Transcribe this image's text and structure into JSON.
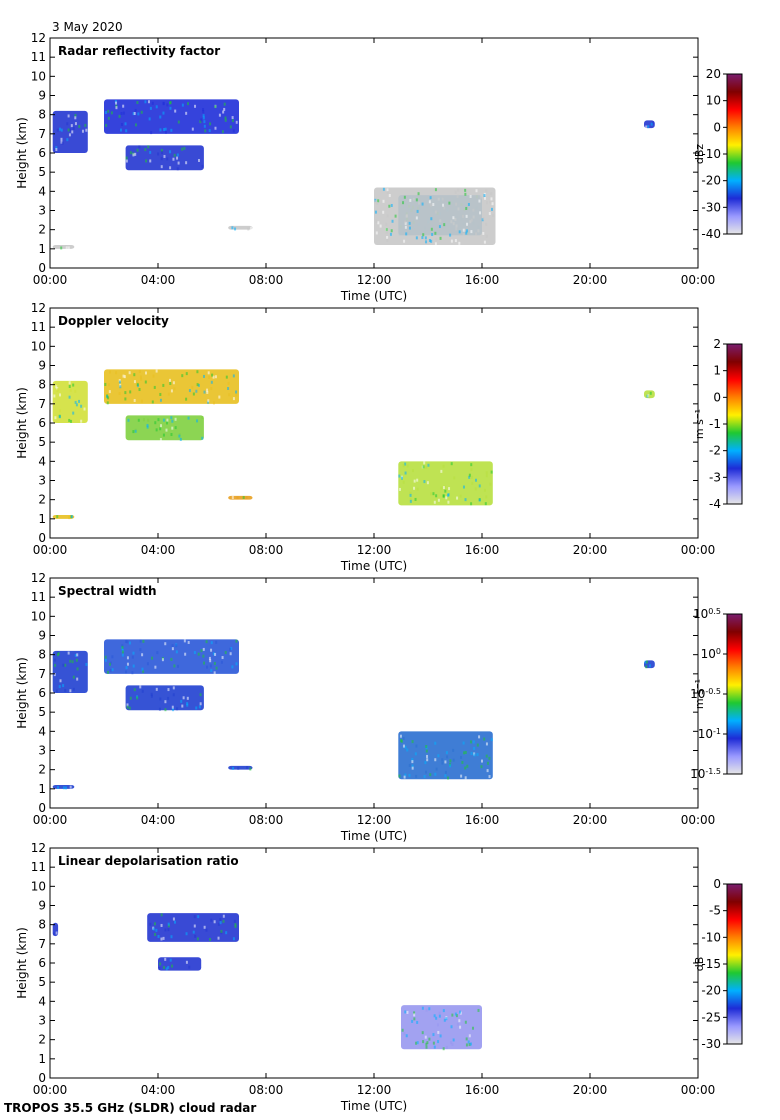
{
  "date_label": "3 May 2020",
  "footer": "TROPOS 35.5 GHz (SLDR) cloud radar",
  "axes": {
    "xlabel": "Time (UTC)",
    "ylabel": "Height (km)",
    "xticks": [
      "00:00",
      "04:00",
      "08:00",
      "12:00",
      "16:00",
      "20:00",
      "00:00"
    ],
    "yticks": [
      "0",
      "1",
      "2",
      "3",
      "4",
      "5",
      "6",
      "7",
      "8",
      "9",
      "10",
      "11",
      "12"
    ]
  },
  "chart_data": [
    {
      "type": "heatmap",
      "title": "Radar reflectivity factor",
      "xlabel": "Time (UTC)",
      "ylabel": "Height (km)",
      "xlim": [
        0,
        24
      ],
      "ylim": [
        0,
        12
      ],
      "colorbar": {
        "label": "dBz",
        "ticks": [
          "20",
          "10",
          "0",
          "-10",
          "-20",
          "-30",
          "-40"
        ],
        "range": [
          -40,
          20
        ],
        "colors": [
          "#e6e6e6",
          "#9999ff",
          "#1e2bd6",
          "#00b0ff",
          "#1fc832",
          "#fff000",
          "#ff8000",
          "#ff0000",
          "#800000",
          "#7a1e6e"
        ]
      },
      "echoes": [
        {
          "t0": 0.1,
          "t1": 1.4,
          "h0": 6.0,
          "h1": 8.2,
          "color": "#2436d0"
        },
        {
          "t0": 2.0,
          "t1": 7.0,
          "h0": 7.0,
          "h1": 8.8,
          "color": "#1f2fd8"
        },
        {
          "t0": 2.8,
          "t1": 5.7,
          "h0": 5.1,
          "h1": 6.4,
          "color": "#2436d0"
        },
        {
          "t0": 12.9,
          "t1": 16.0,
          "h0": 1.7,
          "h1": 3.8,
          "color": "#1e8fd0"
        },
        {
          "t0": 12.0,
          "t1": 16.5,
          "h0": 1.2,
          "h1": 4.2,
          "color": "#c8c8c8"
        },
        {
          "t0": 6.6,
          "t1": 7.5,
          "h0": 2.0,
          "h1": 2.2,
          "color": "#c8c8c8"
        },
        {
          "t0": 0.1,
          "t1": 0.9,
          "h0": 1.0,
          "h1": 1.2,
          "color": "#c8c8c8"
        },
        {
          "t0": 22.0,
          "t1": 22.4,
          "h0": 7.3,
          "h1": 7.7,
          "color": "#2436d0"
        }
      ]
    },
    {
      "type": "heatmap",
      "title": "Doppler velocity",
      "xlabel": "Time (UTC)",
      "ylabel": "Height (km)",
      "xlim": [
        0,
        24
      ],
      "ylim": [
        0,
        12
      ],
      "colorbar": {
        "label": "m s⁻¹",
        "ticks": [
          "2",
          "1",
          "0",
          "-1",
          "-2",
          "-3",
          "-4"
        ],
        "range": [
          -4,
          2
        ],
        "colors": [
          "#e6e6e6",
          "#9999ff",
          "#1e2bd6",
          "#00b0ff",
          "#1fc832",
          "#fff000",
          "#ff8000",
          "#ff0000",
          "#800000",
          "#7a1e6e"
        ]
      },
      "echoes": [
        {
          "t0": 0.1,
          "t1": 1.4,
          "h0": 6.0,
          "h1": 8.2,
          "color": "#d2e03a"
        },
        {
          "t0": 2.0,
          "t1": 7.0,
          "h0": 7.0,
          "h1": 8.8,
          "color": "#e8c020"
        },
        {
          "t0": 2.8,
          "t1": 5.7,
          "h0": 5.1,
          "h1": 6.4,
          "color": "#7fd040"
        },
        {
          "t0": 12.9,
          "t1": 16.4,
          "h0": 1.7,
          "h1": 4.0,
          "color": "#b8e040"
        },
        {
          "t0": 6.6,
          "t1": 7.5,
          "h0": 2.0,
          "h1": 2.2,
          "color": "#e8a020"
        },
        {
          "t0": 0.1,
          "t1": 0.9,
          "h0": 1.0,
          "h1": 1.2,
          "color": "#e8c020"
        },
        {
          "t0": 22.0,
          "t1": 22.4,
          "h0": 7.3,
          "h1": 7.7,
          "color": "#b8e040"
        }
      ]
    },
    {
      "type": "heatmap",
      "title": "Spectral width",
      "xlabel": "Time (UTC)",
      "ylabel": "Height (km)",
      "xlim": [
        0,
        24
      ],
      "ylim": [
        0,
        12
      ],
      "colorbar": {
        "label": "m s⁻¹",
        "ticks": [
          "10^0.5",
          "10^0",
          "10^-0.5",
          "10^-1",
          "10^-1.5"
        ],
        "range": [
          -1.5,
          0.5
        ],
        "colors": [
          "#e6e6e6",
          "#9999ff",
          "#1e2bd6",
          "#00b0ff",
          "#1fc832",
          "#fff000",
          "#ff8000",
          "#ff0000",
          "#800000",
          "#7a1e6e"
        ]
      },
      "echoes": [
        {
          "t0": 0.1,
          "t1": 1.4,
          "h0": 6.0,
          "h1": 8.2,
          "color": "#2040d0"
        },
        {
          "t0": 2.0,
          "t1": 7.0,
          "h0": 7.0,
          "h1": 8.8,
          "color": "#2a58d8"
        },
        {
          "t0": 2.8,
          "t1": 5.7,
          "h0": 5.1,
          "h1": 6.4,
          "color": "#2040d0"
        },
        {
          "t0": 12.9,
          "t1": 16.4,
          "h0": 1.5,
          "h1": 4.0,
          "color": "#2a6fd0"
        },
        {
          "t0": 6.6,
          "t1": 7.5,
          "h0": 2.0,
          "h1": 2.2,
          "color": "#2040d0"
        },
        {
          "t0": 0.1,
          "t1": 0.9,
          "h0": 1.0,
          "h1": 1.2,
          "color": "#2040d0"
        },
        {
          "t0": 22.0,
          "t1": 22.4,
          "h0": 7.3,
          "h1": 7.7,
          "color": "#2040d0"
        }
      ]
    },
    {
      "type": "heatmap",
      "title": "Linear depolarisation ratio",
      "xlabel": "Time (UTC)",
      "ylabel": "Height (km)",
      "xlim": [
        0,
        24
      ],
      "ylim": [
        0,
        12
      ],
      "colorbar": {
        "label": "dB",
        "ticks": [
          "0",
          "-5",
          "-10",
          "-15",
          "-20",
          "-25",
          "-30"
        ],
        "range": [
          -30,
          0
        ],
        "colors": [
          "#e6e6e6",
          "#9999ff",
          "#1e2bd6",
          "#00b0ff",
          "#1fc832",
          "#fff000",
          "#ff8000",
          "#ff0000",
          "#800000",
          "#7a1e6e"
        ]
      },
      "echoes": [
        {
          "t0": 3.6,
          "t1": 7.0,
          "h0": 7.1,
          "h1": 8.6,
          "color": "#2436d0"
        },
        {
          "t0": 4.0,
          "t1": 5.6,
          "h0": 5.6,
          "h1": 6.3,
          "color": "#2436d0"
        },
        {
          "t0": 13.0,
          "t1": 16.0,
          "h0": 1.5,
          "h1": 3.8,
          "color": "#9898f0"
        },
        {
          "t0": 0.1,
          "t1": 0.3,
          "h0": 7.4,
          "h1": 8.1,
          "color": "#2436d0"
        }
      ]
    }
  ]
}
